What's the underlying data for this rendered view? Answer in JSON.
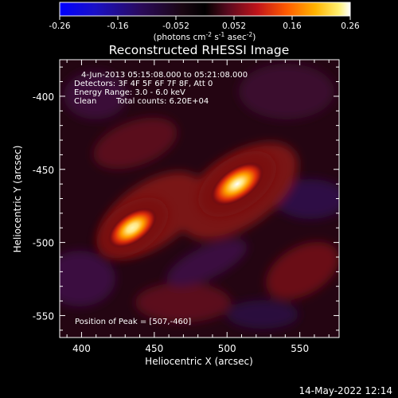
{
  "chart_data": {
    "type": "heatmap",
    "title": "Reconstructed RHESSI Image",
    "colorbar": {
      "ticks": [
        "-0.26",
        "-0.16",
        "-0.052",
        "0.052",
        "0.16",
        "0.26"
      ],
      "tick_values": [
        -0.26,
        -0.156,
        -0.052,
        0.052,
        0.156,
        0.26
      ],
      "range": [
        -0.26,
        0.26
      ],
      "units_prefix": "(photons cm",
      "units_exp1": "-2",
      "units_mid1": " s",
      "units_exp2": "-1",
      "units_mid2": " asec",
      "units_exp3": "-2",
      "units_suffix": ")"
    },
    "xlabel": "Heliocentric X (arcsec)",
    "ylabel": "Heliocentric Y (arcsec)",
    "xlim": [
      385,
      577
    ],
    "ylim": [
      -565,
      -375
    ],
    "xticks": [
      400,
      450,
      500,
      550
    ],
    "yticks": [
      -400,
      -450,
      -500,
      -550
    ],
    "sources": [
      {
        "x": 507,
        "y": -460,
        "peak": 0.26
      },
      {
        "x": 435,
        "y": -490,
        "peak": 0.2
      }
    ],
    "annotations": {
      "time_range": "4-Jun-2013 05:15:08.000 to 05:21:08.000",
      "detectors": "Detectors: 3F 4F 5F 6F 7F 8F, Att 0",
      "energy": "Energy Range: 3.0 - 6.0 keV",
      "method": "Clean",
      "counts": "Total counts: 6.20E+04",
      "peak": "Position of Peak = [507,-460]"
    }
  },
  "footer": {
    "timestamp": "14-May-2022 12:14"
  },
  "colors": {
    "background": "#000000",
    "text": "#ffffff"
  }
}
